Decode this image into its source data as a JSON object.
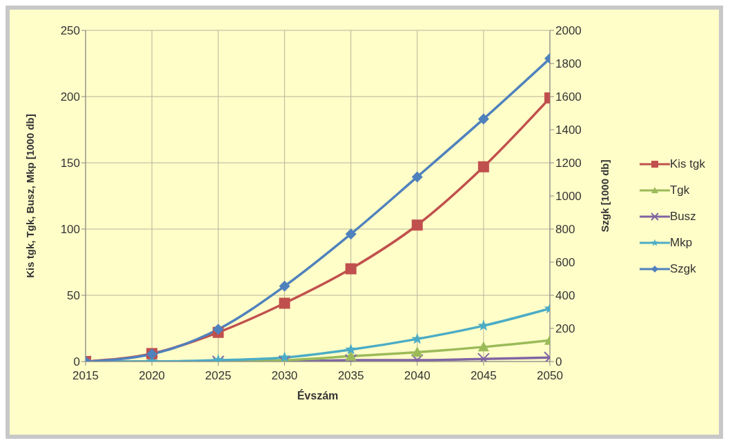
{
  "chart_data": {
    "type": "line",
    "xlabel": "Évszám",
    "ylabel": "Kis tgk, Tgk, Busz, Mkp [1000 db]",
    "y2label": "Szgk [1000 db]",
    "x": [
      2015,
      2020,
      2025,
      2030,
      2035,
      2040,
      2045,
      2050
    ],
    "xlim": [
      2015,
      2050
    ],
    "xticks": [
      2015,
      2020,
      2025,
      2030,
      2035,
      2040,
      2045,
      2050
    ],
    "ylim": [
      0,
      250
    ],
    "yticks": [
      0,
      50,
      100,
      150,
      200,
      250
    ],
    "y2lim": [
      0,
      2000
    ],
    "y2ticks": [
      0,
      200,
      400,
      600,
      800,
      1000,
      1200,
      1400,
      1600,
      1800,
      2000
    ],
    "grid": true,
    "legend": "right",
    "series": [
      {
        "name": "Kis tgk",
        "color": "#c0504d",
        "marker": "square",
        "values": [
          0,
          6,
          22,
          44,
          70,
          103,
          147,
          199
        ]
      },
      {
        "name": "Tgk",
        "color": "#9bbb59",
        "marker": "triangle",
        "values": [
          0,
          0,
          0,
          1,
          4,
          7,
          11,
          16
        ]
      },
      {
        "name": "Busz",
        "color": "#8064a2",
        "marker": "cross",
        "values": [
          0,
          0,
          0,
          0,
          1,
          1,
          2,
          3
        ]
      },
      {
        "name": "Mkp",
        "color": "#4bacc6",
        "marker": "star",
        "values": [
          0,
          0,
          1,
          3,
          9,
          17,
          27,
          40
        ]
      },
      {
        "name": "Szgk",
        "color": "#4f81bd",
        "marker": "diamond",
        "axis": "y2",
        "values": [
          0,
          45,
          195,
          455,
          770,
          1115,
          1465,
          1830
        ]
      }
    ]
  }
}
